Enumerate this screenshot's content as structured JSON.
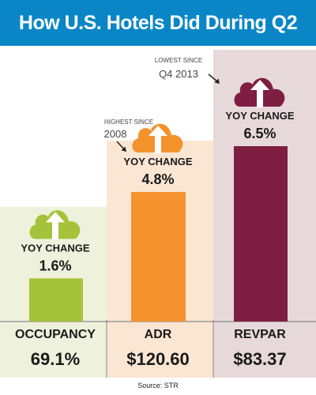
{
  "title": "How U.S. Hotels Did During Q2",
  "source": "Source: STR",
  "colors": {
    "header_bg": "#0a86c7",
    "occupancy": "#a5c33a",
    "occupancy_panel": "#eef2dc",
    "adr": "#f4922e",
    "adr_panel": "#fbe6d3",
    "revpar": "#7f1e43",
    "revpar_panel": "#e7d8da",
    "text": "#1a1a1a",
    "divider": "#888888"
  },
  "chart_data": {
    "type": "bar",
    "title": "How U.S. Hotels Did During Q2",
    "categories": [
      "OCCUPANCY",
      "ADR",
      "REVPAR"
    ],
    "values": [
      1.6,
      4.8,
      6.5
    ],
    "value_labels": [
      "1.6%",
      "4.8%",
      "6.5%"
    ],
    "bar_caption": "YOY CHANGE",
    "metric_values": [
      "69.1%",
      "$120.60",
      "$83.37"
    ],
    "annotations": [
      {
        "category": "ADR",
        "lines": [
          "HIGHEST SINCE",
          "2008"
        ]
      },
      {
        "category": "REVPAR",
        "lines": [
          "LOWEST SINCE",
          "Q4 2013"
        ]
      }
    ],
    "icons": [
      "cloud-up-arrow-icon",
      "cloud-up-arrow-icon",
      "cloud-up-arrow-icon"
    ],
    "ylim": [
      0,
      6.5
    ]
  }
}
